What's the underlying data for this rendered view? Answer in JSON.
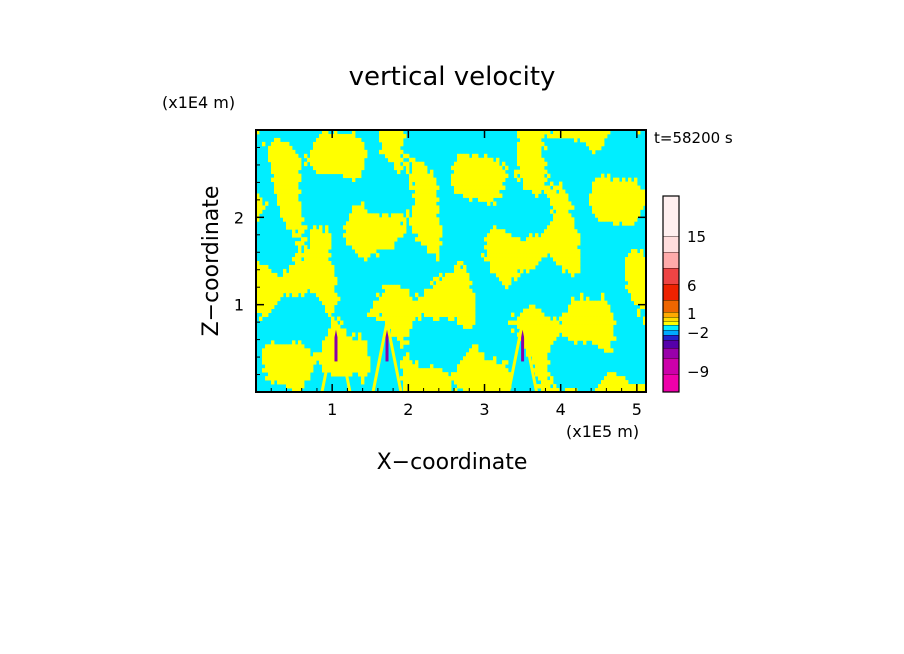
{
  "chart_data": {
    "type": "heatmap",
    "title": "vertical velocity",
    "xlabel": "X−coordinate",
    "ylabel": "Z−coordinate",
    "x_unit_label": "(x1E5 m)",
    "y_unit_label": "(x1E4 m)",
    "time_label": "t=58200 s",
    "xlim": [
      0,
      5.12
    ],
    "ylim": [
      0,
      3.0
    ],
    "x_ticks": [
      1,
      2,
      3,
      4,
      5
    ],
    "y_ticks": [
      1,
      2
    ],
    "x_tick_labels": [
      "1",
      "2",
      "3",
      "4",
      "5"
    ],
    "y_tick_labels": [
      "1",
      "2"
    ],
    "colorbar": {
      "levels": [
        {
          "color": "#ee00aa"
        },
        {
          "color": "#cc00aa"
        },
        {
          "color": "#9900aa"
        },
        {
          "color": "#5500aa"
        },
        {
          "color": "#2222cc"
        },
        {
          "color": "#00aaff"
        },
        {
          "color": "#00eeff"
        },
        {
          "color": "#ffff00"
        },
        {
          "color": "#ffdd00"
        },
        {
          "color": "#ffaa00"
        },
        {
          "color": "#ee6600"
        },
        {
          "color": "#ee2200"
        },
        {
          "color": "#ee4444"
        },
        {
          "color": "#ffaaaa"
        },
        {
          "color": "#ffdddd"
        },
        {
          "color": "#fff0f0"
        }
      ],
      "tick_labels": [
        "15",
        "6",
        "1",
        "−2",
        "−9"
      ]
    },
    "dominant_colors": {
      "positive": "#ffff00",
      "negative": "#00eeff"
    },
    "updraft_x_positions": [
      1.05,
      1.72,
      3.5
    ]
  }
}
